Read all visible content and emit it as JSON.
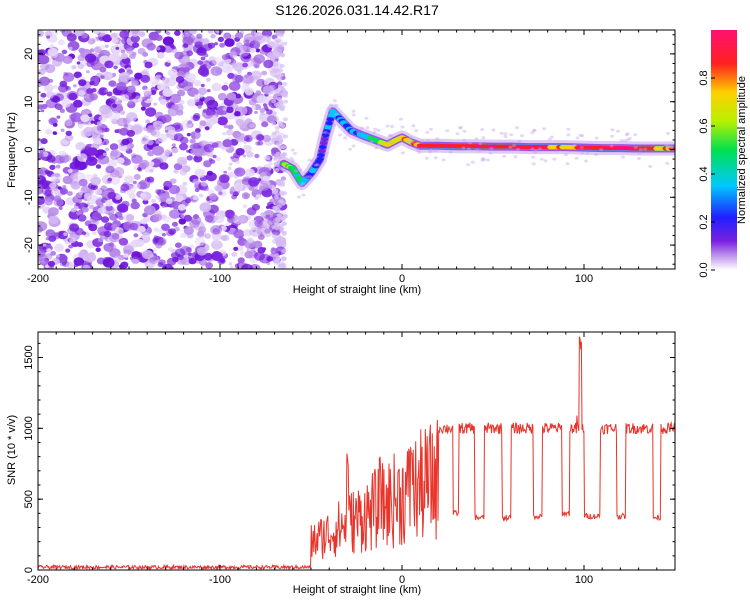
{
  "title": "S126.2026.031.14.42.R17",
  "colors": {
    "snr_line": "#e8342a",
    "noise_purple": "#7a22e0",
    "axis": "#000000"
  },
  "chart_data": [
    {
      "type": "heatmap",
      "name": "spectrogram",
      "xlabel": "Height of straight line (km)",
      "ylabel": "Frequency (Hz)",
      "xlim": [
        -200,
        150
      ],
      "ylim": [
        -25,
        25
      ],
      "xticks": [
        -200,
        -100,
        0,
        100
      ],
      "xtick_labels": [
        "-200",
        "-100",
        "0",
        "100"
      ],
      "yticks": [
        -20,
        -10,
        0,
        10,
        20
      ],
      "ytick_labels": [
        "-20",
        "-10",
        "0",
        "10",
        "20"
      ],
      "signal_onset_km": -65,
      "track": [
        {
          "x": -65,
          "y": -3,
          "amp": 0.55
        },
        {
          "x": -60,
          "y": -4,
          "amp": 0.6
        },
        {
          "x": -55,
          "y": -7,
          "amp": 0.45
        },
        {
          "x": -50,
          "y": -5,
          "amp": 0.4
        },
        {
          "x": -45,
          "y": -2,
          "amp": 0.35
        },
        {
          "x": -42,
          "y": 3,
          "amp": 0.3
        },
        {
          "x": -38,
          "y": 8,
          "amp": 0.45
        },
        {
          "x": -33,
          "y": 6,
          "amp": 0.4
        },
        {
          "x": -28,
          "y": 4,
          "amp": 0.35
        },
        {
          "x": -22,
          "y": 3,
          "amp": 0.4
        },
        {
          "x": -15,
          "y": 2,
          "amp": 0.6
        },
        {
          "x": -8,
          "y": 1,
          "amp": 0.75
        },
        {
          "x": -3,
          "y": 2,
          "amp": 0.7
        },
        {
          "x": 0,
          "y": 2.5,
          "amp": 0.8
        },
        {
          "x": 5,
          "y": 1.5,
          "amp": 0.75
        },
        {
          "x": 10,
          "y": 0.8,
          "amp": 0.9
        },
        {
          "x": 20,
          "y": 0.8,
          "amp": 0.95
        },
        {
          "x": 30,
          "y": 0.7,
          "amp": 0.95
        },
        {
          "x": 40,
          "y": 0.7,
          "amp": 0.95
        },
        {
          "x": 50,
          "y": 0.6,
          "amp": 0.95
        },
        {
          "x": 60,
          "y": 0.6,
          "amp": 0.95
        },
        {
          "x": 70,
          "y": 0.5,
          "amp": 0.95
        },
        {
          "x": 80,
          "y": 0.5,
          "amp": 0.9
        },
        {
          "x": 90,
          "y": 0.5,
          "amp": 0.75
        },
        {
          "x": 100,
          "y": 0.4,
          "amp": 0.9
        },
        {
          "x": 110,
          "y": 0.3,
          "amp": 0.95
        },
        {
          "x": 120,
          "y": 0.3,
          "amp": 0.95
        },
        {
          "x": 130,
          "y": 0.2,
          "amp": 0.95
        },
        {
          "x": 140,
          "y": 0.2,
          "amp": 0.85
        },
        {
          "x": 150,
          "y": 0.2,
          "amp": 0.85
        }
      ],
      "colorbar": {
        "label": "Normalized spectral amplitude",
        "range": [
          0,
          1
        ],
        "ticks": [
          0.0,
          0.2,
          0.4,
          0.6,
          0.8
        ],
        "tick_labels": [
          "0.0",
          "0.2",
          "0.4",
          "0.6",
          "0.8"
        ],
        "stops": [
          "#ffffff",
          "#c9a6ee",
          "#7a22e0",
          "#1f1fff",
          "#00c8ff",
          "#00e050",
          "#b8f000",
          "#ffd000",
          "#ff2020",
          "#ff1070"
        ]
      }
    },
    {
      "type": "line",
      "name": "snr",
      "xlabel": "Height of straight line (km)",
      "ylabel": "SNR (10 * v/v)",
      "xlim": [
        -200,
        150
      ],
      "ylim": [
        0,
        1680
      ],
      "xticks": [
        -200,
        -100,
        0,
        100
      ],
      "xtick_labels": [
        "-200",
        "-100",
        "0",
        "100"
      ],
      "yticks": [
        0,
        500,
        1000,
        1500
      ],
      "ytick_labels": [
        "0",
        "500",
        "1000",
        "1500"
      ],
      "baseline_value": 20,
      "onset_km": -50,
      "plateau_value": 1000,
      "dips": [
        {
          "x0": 28,
          "x1": 31,
          "value": 400
        },
        {
          "x0": 40,
          "x1": 45,
          "value": 370
        },
        {
          "x0": 55,
          "x1": 60,
          "value": 370
        },
        {
          "x0": 72,
          "x1": 77,
          "value": 380
        },
        {
          "x0": 88,
          "x1": 92,
          "value": 400
        },
        {
          "x0": 100,
          "x1": 109,
          "value": 380
        },
        {
          "x0": 118,
          "x1": 123,
          "value": 380
        },
        {
          "x0": 138,
          "x1": 142,
          "value": 370
        }
      ],
      "spikes": [
        {
          "x": -30,
          "value": 850
        },
        {
          "x": -12,
          "value": 800
        },
        {
          "x": 5,
          "value": 920
        },
        {
          "x": 96,
          "value": 1100
        },
        {
          "x": 98,
          "value": 1680
        }
      ]
    }
  ]
}
